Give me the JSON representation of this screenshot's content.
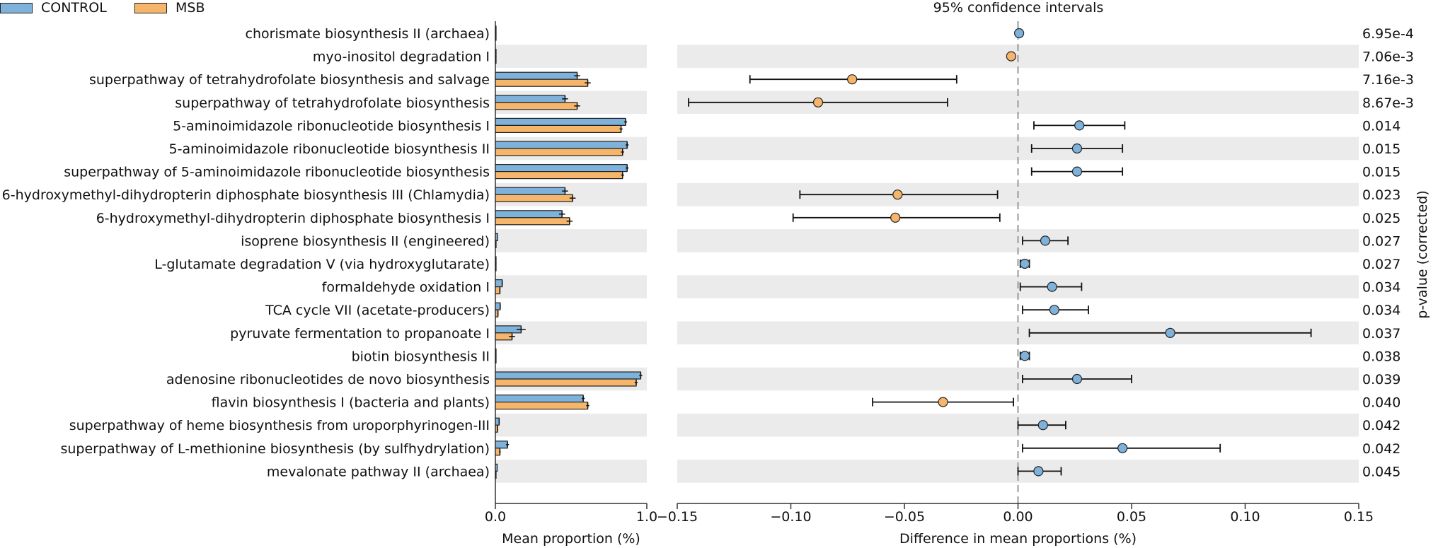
{
  "legend": {
    "control_label": "CONTROL",
    "msb_label": "MSB",
    "control_color": "#7eb2da",
    "msb_color": "#f5b56b"
  },
  "chart_data": {
    "type": "extended_error_bar",
    "ci_title": "95% confidence intervals",
    "left_xlabel": "Mean proportion (%)",
    "right_xlabel": "Difference in mean proportions (%)",
    "right_ylabel": "p-value (corrected)",
    "left_xlim": [
      0.0,
      1.0
    ],
    "left_xticks": [
      "0.0",
      "1.0"
    ],
    "right_xlim": [
      -0.15,
      0.15
    ],
    "right_xticks": [
      -0.15,
      -0.1,
      -0.05,
      0.0,
      0.05,
      0.1,
      0.15
    ],
    "right_xtick_labels": [
      "−0.15",
      "−0.10",
      "−0.05",
      "0.00",
      "0.05",
      "0.10",
      "0.15"
    ],
    "pathways": [
      {
        "name": "chorismate biosynthesis II (archaea)",
        "control": 0.002,
        "msb": 0.0,
        "control_err": 0.0,
        "msb_err": 0.0,
        "diff": 0.0005,
        "ci_low": 0.0005,
        "ci_high": 0.0005,
        "pvalue": "6.95e-4",
        "enriched": "CONTROL"
      },
      {
        "name": "myo-inositol degradation I",
        "control": 0.0,
        "msb": 0.004,
        "control_err": 0.0,
        "msb_err": 0.0,
        "diff": -0.003,
        "ci_low": -0.003,
        "ci_high": -0.003,
        "pvalue": "7.06e-3",
        "enriched": "MSB"
      },
      {
        "name": "superpathway of tetrahydrofolate biosynthesis and salvage",
        "control": 0.54,
        "msb": 0.61,
        "control_err": 0.02,
        "msb_err": 0.02,
        "diff": -0.073,
        "ci_low": -0.118,
        "ci_high": -0.027,
        "pvalue": "7.16e-3",
        "enriched": "MSB"
      },
      {
        "name": "superpathway of tetrahydrofolate biosynthesis",
        "control": 0.46,
        "msb": 0.54,
        "control_err": 0.02,
        "msb_err": 0.02,
        "diff": -0.088,
        "ci_low": -0.145,
        "ci_high": -0.031,
        "pvalue": "8.67e-3",
        "enriched": "MSB"
      },
      {
        "name": "5-aminoimidazole ribonucleotide biosynthesis I",
        "control": 0.86,
        "msb": 0.83,
        "control_err": 0.01,
        "msb_err": 0.01,
        "diff": 0.027,
        "ci_low": 0.007,
        "ci_high": 0.047,
        "pvalue": "0.014",
        "enriched": "CONTROL"
      },
      {
        "name": "5-aminoimidazole ribonucleotide biosynthesis II",
        "control": 0.87,
        "msb": 0.84,
        "control_err": 0.01,
        "msb_err": 0.01,
        "diff": 0.026,
        "ci_low": 0.006,
        "ci_high": 0.046,
        "pvalue": "0.015",
        "enriched": "CONTROL"
      },
      {
        "name": "superpathway of 5-aminoimidazole ribonucleotide biosynthesis",
        "control": 0.87,
        "msb": 0.84,
        "control_err": 0.01,
        "msb_err": 0.01,
        "diff": 0.026,
        "ci_low": 0.006,
        "ci_high": 0.046,
        "pvalue": "0.015",
        "enriched": "CONTROL"
      },
      {
        "name": "6-hydroxymethyl-dihydropterin diphosphate biosynthesis III (Chlamydia)",
        "control": 0.46,
        "msb": 0.51,
        "control_err": 0.02,
        "msb_err": 0.02,
        "diff": -0.053,
        "ci_low": -0.096,
        "ci_high": -0.009,
        "pvalue": "0.023",
        "enriched": "MSB"
      },
      {
        "name": "6-hydroxymethyl-dihydropterin diphosphate biosynthesis I",
        "control": 0.44,
        "msb": 0.49,
        "control_err": 0.02,
        "msb_err": 0.02,
        "diff": -0.054,
        "ci_low": -0.099,
        "ci_high": -0.008,
        "pvalue": "0.025",
        "enriched": "MSB"
      },
      {
        "name": "isoprene biosynthesis II (engineered)",
        "control": 0.015,
        "msb": 0.004,
        "control_err": 0.0,
        "msb_err": 0.0,
        "diff": 0.012,
        "ci_low": 0.002,
        "ci_high": 0.022,
        "pvalue": "0.027",
        "enriched": "CONTROL"
      },
      {
        "name": "L-glutamate degradation V (via hydroxyglutarate)",
        "control": 0.004,
        "msb": 0.001,
        "control_err": 0.0,
        "msb_err": 0.0,
        "diff": 0.003,
        "ci_low": 0.001,
        "ci_high": 0.005,
        "pvalue": "0.027",
        "enriched": "CONTROL"
      },
      {
        "name": "formaldehyde oxidation I",
        "control": 0.045,
        "msb": 0.03,
        "control_err": 0.003,
        "msb_err": 0.003,
        "diff": 0.015,
        "ci_low": 0.001,
        "ci_high": 0.028,
        "pvalue": "0.034",
        "enriched": "CONTROL"
      },
      {
        "name": "TCA cycle VII (acetate-producers)",
        "control": 0.032,
        "msb": 0.017,
        "control_err": 0.003,
        "msb_err": 0.003,
        "diff": 0.016,
        "ci_low": 0.002,
        "ci_high": 0.031,
        "pvalue": "0.034",
        "enriched": "CONTROL"
      },
      {
        "name": "pyruvate fermentation to propanoate I",
        "control": 0.17,
        "msb": 0.11,
        "control_err": 0.03,
        "msb_err": 0.02,
        "diff": 0.067,
        "ci_low": 0.005,
        "ci_high": 0.129,
        "pvalue": "0.037",
        "enriched": "CONTROL"
      },
      {
        "name": "biotin biosynthesis II",
        "control": 0.004,
        "msb": 0.001,
        "control_err": 0.0,
        "msb_err": 0.0,
        "diff": 0.003,
        "ci_low": 0.001,
        "ci_high": 0.005,
        "pvalue": "0.038",
        "enriched": "CONTROL"
      },
      {
        "name": "adenosine ribonucleotides de novo biosynthesis",
        "control": 0.96,
        "msb": 0.93,
        "control_err": 0.01,
        "msb_err": 0.01,
        "diff": 0.026,
        "ci_low": 0.002,
        "ci_high": 0.05,
        "pvalue": "0.039",
        "enriched": "CONTROL"
      },
      {
        "name": "flavin biosynthesis I (bacteria and plants)",
        "control": 0.58,
        "msb": 0.61,
        "control_err": 0.01,
        "msb_err": 0.01,
        "diff": -0.033,
        "ci_low": -0.064,
        "ci_high": -0.002,
        "pvalue": "0.040",
        "enriched": "MSB"
      },
      {
        "name": "superpathway of heme biosynthesis from uroporphyrinogen-III",
        "control": 0.025,
        "msb": 0.014,
        "control_err": 0.002,
        "msb_err": 0.002,
        "diff": 0.011,
        "ci_low": 0.0,
        "ci_high": 0.021,
        "pvalue": "0.042",
        "enriched": "CONTROL"
      },
      {
        "name": "superpathway of L-methionine biosynthesis (by sulfhydrylation)",
        "control": 0.08,
        "msb": 0.03,
        "control_err": 0.01,
        "msb_err": 0.005,
        "diff": 0.046,
        "ci_low": 0.002,
        "ci_high": 0.089,
        "pvalue": "0.042",
        "enriched": "CONTROL"
      },
      {
        "name": "mevalonate pathway II (archaea)",
        "control": 0.012,
        "msb": 0.002,
        "control_err": 0.0,
        "msb_err": 0.0,
        "diff": 0.009,
        "ci_low": 0.0,
        "ci_high": 0.019,
        "pvalue": "0.045",
        "enriched": "CONTROL"
      }
    ]
  }
}
